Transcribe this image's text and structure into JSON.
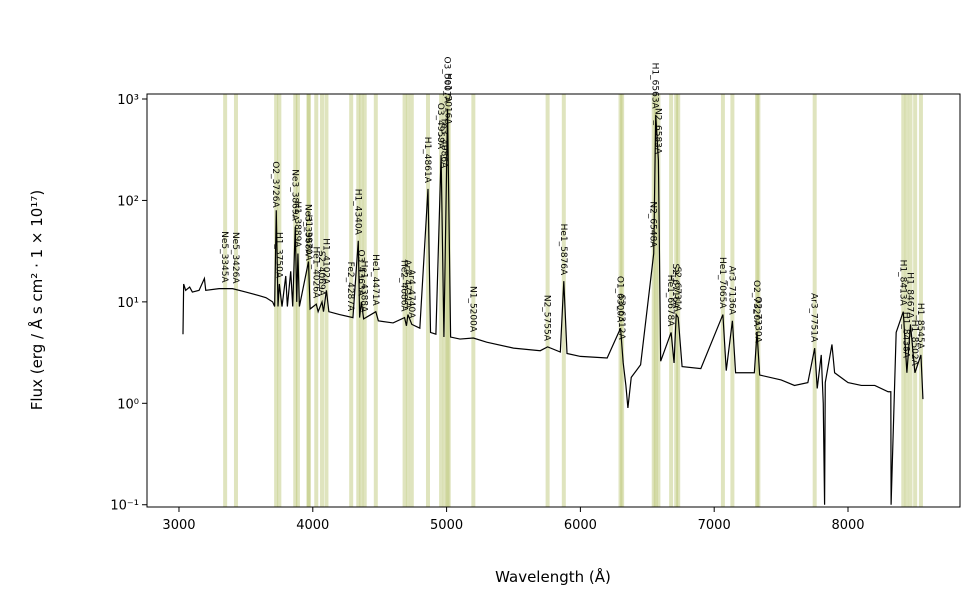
{
  "chart_data": {
    "type": "line",
    "xlabel": "Wavelength (Å)",
    "ylabel": "Flux (erg / Å s cm² · 1 × 10¹⁷)",
    "xlim": [
      2761,
      8837
    ],
    "xticks": [
      3000,
      4000,
      5000,
      6000,
      7000,
      8000
    ],
    "ylim": [
      0.095,
      1120
    ],
    "log_y": true,
    "yticks": [
      {
        "value": 0.1,
        "label": "10⁻¹"
      },
      {
        "value": 1,
        "label": "10⁰"
      },
      {
        "value": 10,
        "label": "10¹"
      },
      {
        "value": 100,
        "label": "10²"
      },
      {
        "value": 1000,
        "label": "10³"
      }
    ],
    "band_color": "#b9c46e",
    "x": [
      3030,
      3035,
      3050,
      3080,
      3100,
      3150,
      3190,
      3200,
      3300,
      3400,
      3500,
      3600,
      3650,
      3700,
      3715,
      3727,
      3740,
      3750,
      3770,
      3798,
      3810,
      3835,
      3850,
      3869,
      3880,
      3889,
      3900,
      3968,
      3980,
      4026,
      4040,
      4069,
      4080,
      4102,
      4120,
      4200,
      4300,
      4340,
      4350,
      4363,
      4380,
      4471,
      4490,
      4600,
      4686,
      4700,
      4711,
      4740,
      4800,
      4861,
      4880,
      4920,
      4959,
      4980,
      5007,
      5030,
      5100,
      5200,
      5300,
      5500,
      5700,
      5755,
      5850,
      5876,
      5900,
      6000,
      6200,
      6300,
      6320,
      6340,
      6355,
      6380,
      6450,
      6548,
      6563,
      6583,
      6600,
      6678,
      6700,
      6716,
      6731,
      6760,
      6900,
      7065,
      7090,
      7136,
      7160,
      7300,
      7320,
      7340,
      7500,
      7600,
      7700,
      7751,
      7770,
      7800,
      7815,
      7825,
      7830,
      7880,
      7900,
      8000,
      8100,
      8200,
      8300,
      8320,
      8322,
      8360,
      8413,
      8440,
      8467,
      8500,
      8545,
      8560
    ],
    "series": [
      {
        "color": "#000000",
        "values": [
          4.8,
          15,
          13,
          14,
          12.5,
          13,
          17,
          13,
          13.5,
          13.5,
          12.5,
          11.5,
          11,
          10,
          9,
          80,
          9,
          15,
          9,
          18,
          9,
          20,
          9,
          55,
          10,
          30,
          9,
          25,
          8.5,
          9.5,
          8,
          10,
          8,
          13,
          8,
          7.5,
          7,
          40,
          7,
          10,
          6.8,
          8,
          6.5,
          6.2,
          7,
          5.8,
          7.5,
          6,
          5.5,
          130,
          5,
          4.8,
          280,
          4.5,
          800,
          4.5,
          4.3,
          4.4,
          4,
          3.5,
          3.3,
          3.6,
          3.2,
          16,
          3.1,
          2.9,
          2.8,
          5.5,
          2.5,
          1.5,
          0.9,
          1.8,
          2.4,
          30,
          700,
          250,
          2.6,
          5,
          2.5,
          7.5,
          7,
          2.3,
          2.2,
          7.5,
          2.1,
          6.5,
          2,
          2,
          5,
          1.9,
          1.7,
          1.5,
          1.6,
          3.5,
          1.4,
          3,
          1,
          0.1,
          1.6,
          3.8,
          2,
          1.6,
          1.5,
          1.5,
          1.3,
          1.3,
          0.1,
          5,
          8,
          2,
          6,
          2,
          3,
          1.1
        ]
      }
    ],
    "lines": [
      {
        "label": "Ne5_3345A",
        "x": 3345
      },
      {
        "label": "Ne5_3426A",
        "x": 3426
      },
      {
        "label": "O2_3726A",
        "x": 3726
      },
      {
        "label": "H1_3750A",
        "x": 3750
      },
      {
        "label": "Ne3_3869A",
        "x": 3869
      },
      {
        "label": "H1_3889A",
        "x": 3889
      },
      {
        "label": "Ne3_3968A",
        "x": 3968
      },
      {
        "label": "H1_3970A",
        "x": 3970
      },
      {
        "label": "He1_4026A",
        "x": 4026
      },
      {
        "label": "S2_4069A",
        "x": 4069
      },
      {
        "label": "H1_4102A",
        "x": 4102
      },
      {
        "label": "Fe2_4287A",
        "x": 4287
      },
      {
        "label": "H1_4340A",
        "x": 4340
      },
      {
        "label": "O3_4363A",
        "x": 4363
      },
      {
        "label": "He1_4388A",
        "x": 4388
      },
      {
        "label": "He1_4471A",
        "x": 4471
      },
      {
        "label": "He2_4686A",
        "x": 4686
      },
      {
        "label": "Ar4_4711A",
        "x": 4711
      },
      {
        "label": "Ar4_4740A",
        "x": 4740
      },
      {
        "label": "H1_4861A",
        "x": 4861
      },
      {
        "label": "O3_4959A",
        "x": 4959
      },
      {
        "label": "Fe3_4986A",
        "x": 4986
      },
      {
        "label": "O3_5007A",
        "x": 5007
      },
      {
        "label": "He1_5016A",
        "x": 5016
      },
      {
        "label": "N1_5200A",
        "x": 5200
      },
      {
        "label": "N2_5755A",
        "x": 5755
      },
      {
        "label": "He1_5876A",
        "x": 5876
      },
      {
        "label": "O1_6300A",
        "x": 6300
      },
      {
        "label": "S3_6312A",
        "x": 6312
      },
      {
        "label": "N2_6548A",
        "x": 6548
      },
      {
        "label": "H1_6563A",
        "x": 6563
      },
      {
        "label": "N2_6583A",
        "x": 6583
      },
      {
        "label": "He1_6678A",
        "x": 6678
      },
      {
        "label": "S2_6716A",
        "x": 6716
      },
      {
        "label": "S2_6731A",
        "x": 6731
      },
      {
        "label": "He1_7065A",
        "x": 7065
      },
      {
        "label": "Ar3_7136A",
        "x": 7136
      },
      {
        "label": "O2_7320A",
        "x": 7320
      },
      {
        "label": "O2_7330A",
        "x": 7330
      },
      {
        "label": "Ar3_7751A",
        "x": 7751
      },
      {
        "label": "H1_8413A",
        "x": 8413
      },
      {
        "label": "H1_8438A",
        "x": 8438
      },
      {
        "label": "H1_8467A",
        "x": 8467
      },
      {
        "label": "H1_8502A",
        "x": 8502
      },
      {
        "label": "H1_8545A",
        "x": 8545
      }
    ]
  }
}
